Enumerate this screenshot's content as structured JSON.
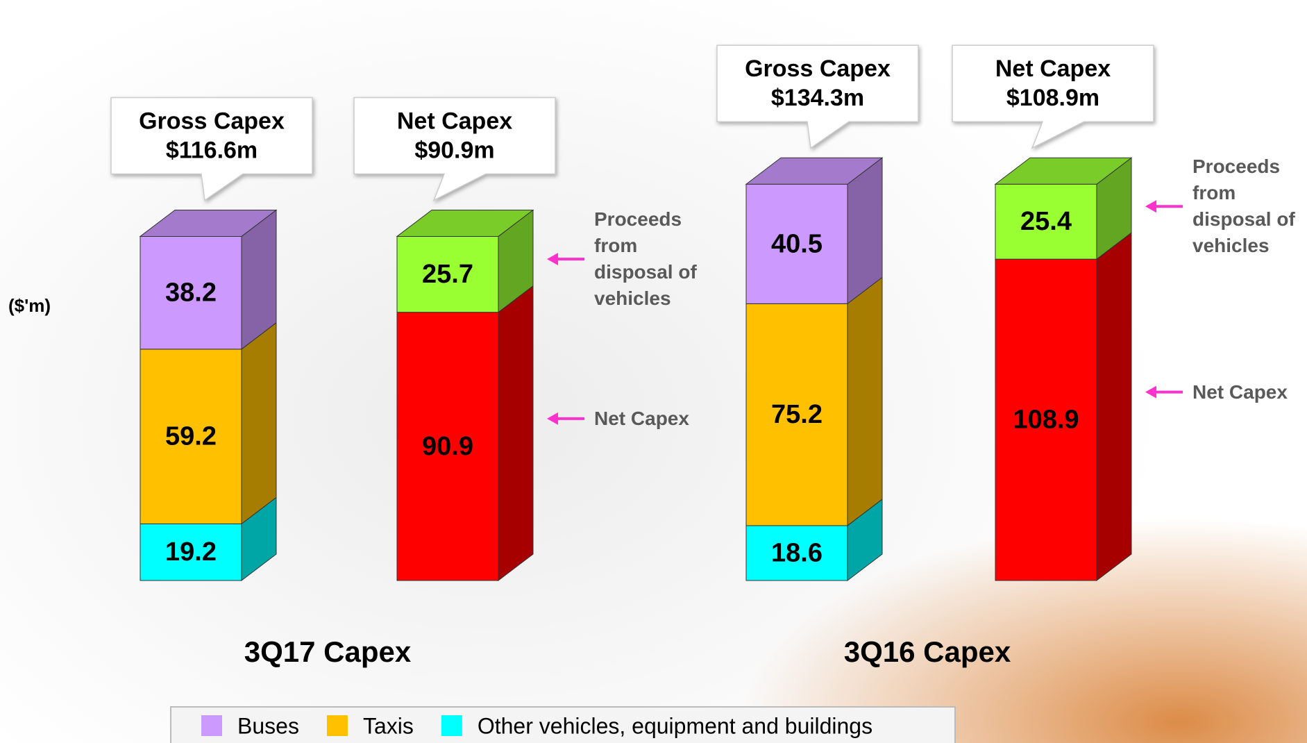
{
  "chart_data": {
    "type": "bar",
    "stacked": true,
    "unit_label": "($'m)",
    "categories": [
      "3Q17 Capex",
      "3Q16 Capex"
    ],
    "series": [
      {
        "name": "Buses",
        "color": "#cc99ff",
        "values": [
          38.2,
          40.5
        ]
      },
      {
        "name": "Taxis",
        "color": "#ffc000",
        "values": [
          59.2,
          75.2
        ]
      },
      {
        "name": "Other vehicles, equipment and buildings",
        "color": "#00ffff",
        "values": [
          19.2,
          18.6
        ]
      }
    ],
    "net_series": [
      {
        "name": "Net Capex",
        "color": "#ff0000",
        "values": [
          90.9,
          108.9
        ]
      },
      {
        "name": "Proceeds from disposal of vehicles",
        "color": "#99ff33",
        "values": [
          25.7,
          25.4
        ]
      }
    ],
    "gross_title": "Gross Capex",
    "gross_totals": [
      116.6,
      134.3
    ],
    "gross_total_labels": [
      "$116.6m",
      "$134.3m"
    ],
    "net_title": "Net Capex",
    "net_totals": [
      90.9,
      108.9
    ],
    "net_total_labels": [
      "$90.9m",
      "$108.9m"
    ]
  }
}
